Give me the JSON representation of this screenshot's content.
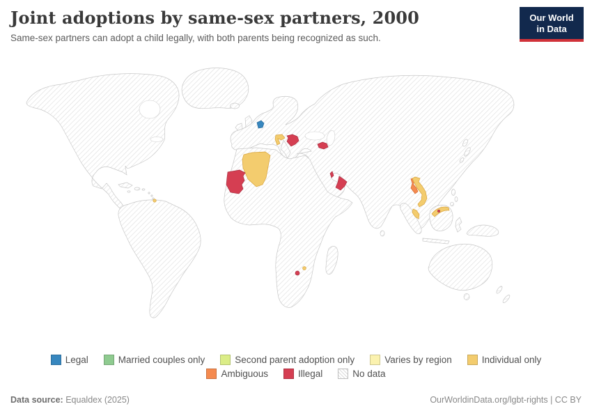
{
  "header": {
    "title": "Joint adoptions by same-sex partners, 2000",
    "subtitle": "Same-sex partners can adopt a child legally, with both parents being recognized as such.",
    "logo": {
      "line1": "Our World",
      "line2": "in Data",
      "bg_color": "#12294d",
      "accent_color": "#d13239"
    }
  },
  "legend": {
    "rows": [
      [
        {
          "label": "Legal",
          "color": "#3787bf"
        },
        {
          "label": "Married couples only",
          "color": "#8fcb90"
        },
        {
          "label": "Second parent adoption only",
          "color": "#dbed87"
        },
        {
          "label": "Varies by region",
          "color": "#fbf2af"
        },
        {
          "label": "Individual only",
          "color": "#f3cc6e"
        }
      ],
      [
        {
          "label": "Ambiguous",
          "color": "#f58a4f"
        },
        {
          "label": "Illegal",
          "color": "#d53e52"
        },
        {
          "label": "No data",
          "color": "hatch"
        }
      ]
    ]
  },
  "map": {
    "status_colors": {
      "Legal": "#3787bf",
      "Married couples only": "#8fcb90",
      "Second parent adoption only": "#dbed87",
      "Varies by region": "#fbf2af",
      "Individual only": "#f3cc6e",
      "Ambiguous": "#f58a4f",
      "Illegal": "#d53e52"
    },
    "status_strokes": {
      "Legal": "#2c6b99",
      "Married couples only": "#6aa86c",
      "Second parent adoption only": "#b3c75f",
      "Varies by region": "#d9ce7e",
      "Individual only": "#d8a33c",
      "Ambiguous": "#d4682f",
      "Illegal": "#aa2f41"
    },
    "default_status": "No data",
    "countries": [
      {
        "id": "netherlands",
        "name": "Netherlands",
        "status": "Legal"
      },
      {
        "id": "croatia",
        "name": "Croatia",
        "status": "Individual only"
      },
      {
        "id": "serbia",
        "name": "Serbia",
        "status": "Illegal"
      },
      {
        "id": "azerbaijan",
        "name": "Azerbaijan",
        "status": "Illegal"
      },
      {
        "id": "algeria",
        "name": "Algeria",
        "status": "Individual only"
      },
      {
        "id": "mauritania",
        "name": "Mauritania",
        "status": "Illegal"
      },
      {
        "id": "qatar",
        "name": "Qatar",
        "status": "Illegal"
      },
      {
        "id": "oman",
        "name": "Oman",
        "status": "Illegal"
      },
      {
        "id": "laos",
        "name": "Laos",
        "status": "Ambiguous"
      },
      {
        "id": "vietnam",
        "name": "Vietnam",
        "status": "Individual only"
      },
      {
        "id": "malaysia",
        "name": "Malaysia",
        "status": "Individual only"
      },
      {
        "id": "brunei",
        "name": "Brunei",
        "status": "Illegal"
      },
      {
        "id": "trinidad-and-tobago",
        "name": "Trinidad and Tobago",
        "status": "Individual only"
      },
      {
        "id": "eswatini",
        "name": "Eswatini",
        "status": "Individual only"
      },
      {
        "id": "lesotho",
        "name": "Lesotho",
        "status": "Illegal"
      }
    ]
  },
  "chart_data": {
    "type": "choropleth_map",
    "title": "Joint adoptions by same-sex partners, 2000",
    "year": 2000,
    "legend_categories": [
      "Legal",
      "Married couples only",
      "Second parent adoption only",
      "Varies by region",
      "Individual only",
      "Ambiguous",
      "Illegal",
      "No data"
    ],
    "values": {
      "Netherlands": "Legal",
      "Croatia": "Individual only",
      "Serbia": "Illegal",
      "Azerbaijan": "Illegal",
      "Algeria": "Individual only",
      "Mauritania": "Illegal",
      "Qatar": "Illegal",
      "Oman": "Illegal",
      "Laos": "Ambiguous",
      "Vietnam": "Individual only",
      "Malaysia": "Individual only",
      "Brunei": "Illegal",
      "Trinidad and Tobago": "Individual only",
      "Eswatini": "Individual only",
      "Lesotho": "Illegal",
      "All other countries": "No data"
    },
    "legend_position": "bottom"
  },
  "footer": {
    "source_label": "Data source:",
    "source_value": "Equaldex (2025)",
    "attribution": "OurWorldinData.org/lgbt-rights | CC BY"
  }
}
